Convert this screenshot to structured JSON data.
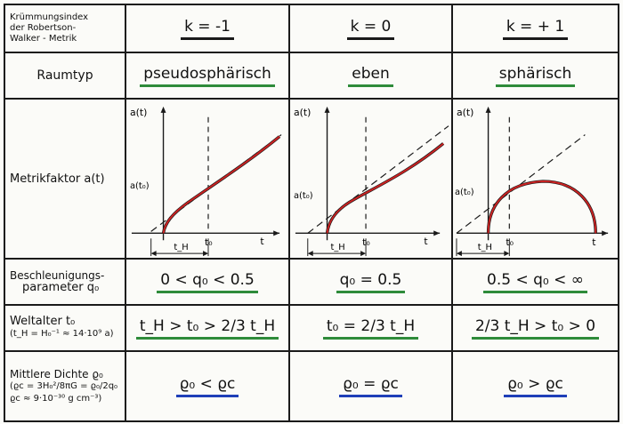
{
  "header": {
    "label_lines": [
      "Krümmungsindex",
      "der Robertson-",
      "Walker - Metrik"
    ],
    "k_values": [
      "k = -1",
      "k = 0",
      "k = + 1"
    ]
  },
  "rows": {
    "raumtyp": {
      "label": "Raumtyp",
      "values": [
        "pseudosphärisch",
        "eben",
        "sphärisch"
      ]
    },
    "metrik": {
      "label": "Metrikfaktor a(t)"
    },
    "beschleunigung": {
      "label_lines": [
        "Beschleunigungs-",
        "parameter q₀"
      ],
      "values": [
        "0 < q₀ < 0.5",
        "q₀ = 0.5",
        "0.5 < q₀ < ∞"
      ]
    },
    "weltalter": {
      "label_lines": [
        "Weltalter t₀",
        "(t_H = H₀⁻¹ ≈ 14·10⁹ a)"
      ],
      "values": [
        "t_H > t₀ > 2/3 t_H",
        "t₀ = 2/3 t_H",
        "2/3 t_H > t₀ > 0"
      ]
    },
    "dichte": {
      "label_lines": [
        "Mittlere Dichte ϱ₀",
        "(ϱc = 3H₀²/8πG = ϱ₀/2q₀",
        "ϱc ≈ 9·10⁻³⁰ g cm⁻³)"
      ],
      "values": [
        "ϱ₀ < ϱc",
        "ϱ₀ = ϱc",
        "ϱ₀ > ϱc"
      ]
    }
  },
  "plot_labels": {
    "y_axis": "a(t)",
    "x_axis": "t",
    "t0": "t₀",
    "tH": "t_H",
    "a_t0": "a(t₀)"
  },
  "colors": {
    "curve": "#cc2222",
    "underline_green": "#2e8b3a",
    "underline_blue": "#1f3fb8",
    "ink": "#1a1a1a"
  }
}
